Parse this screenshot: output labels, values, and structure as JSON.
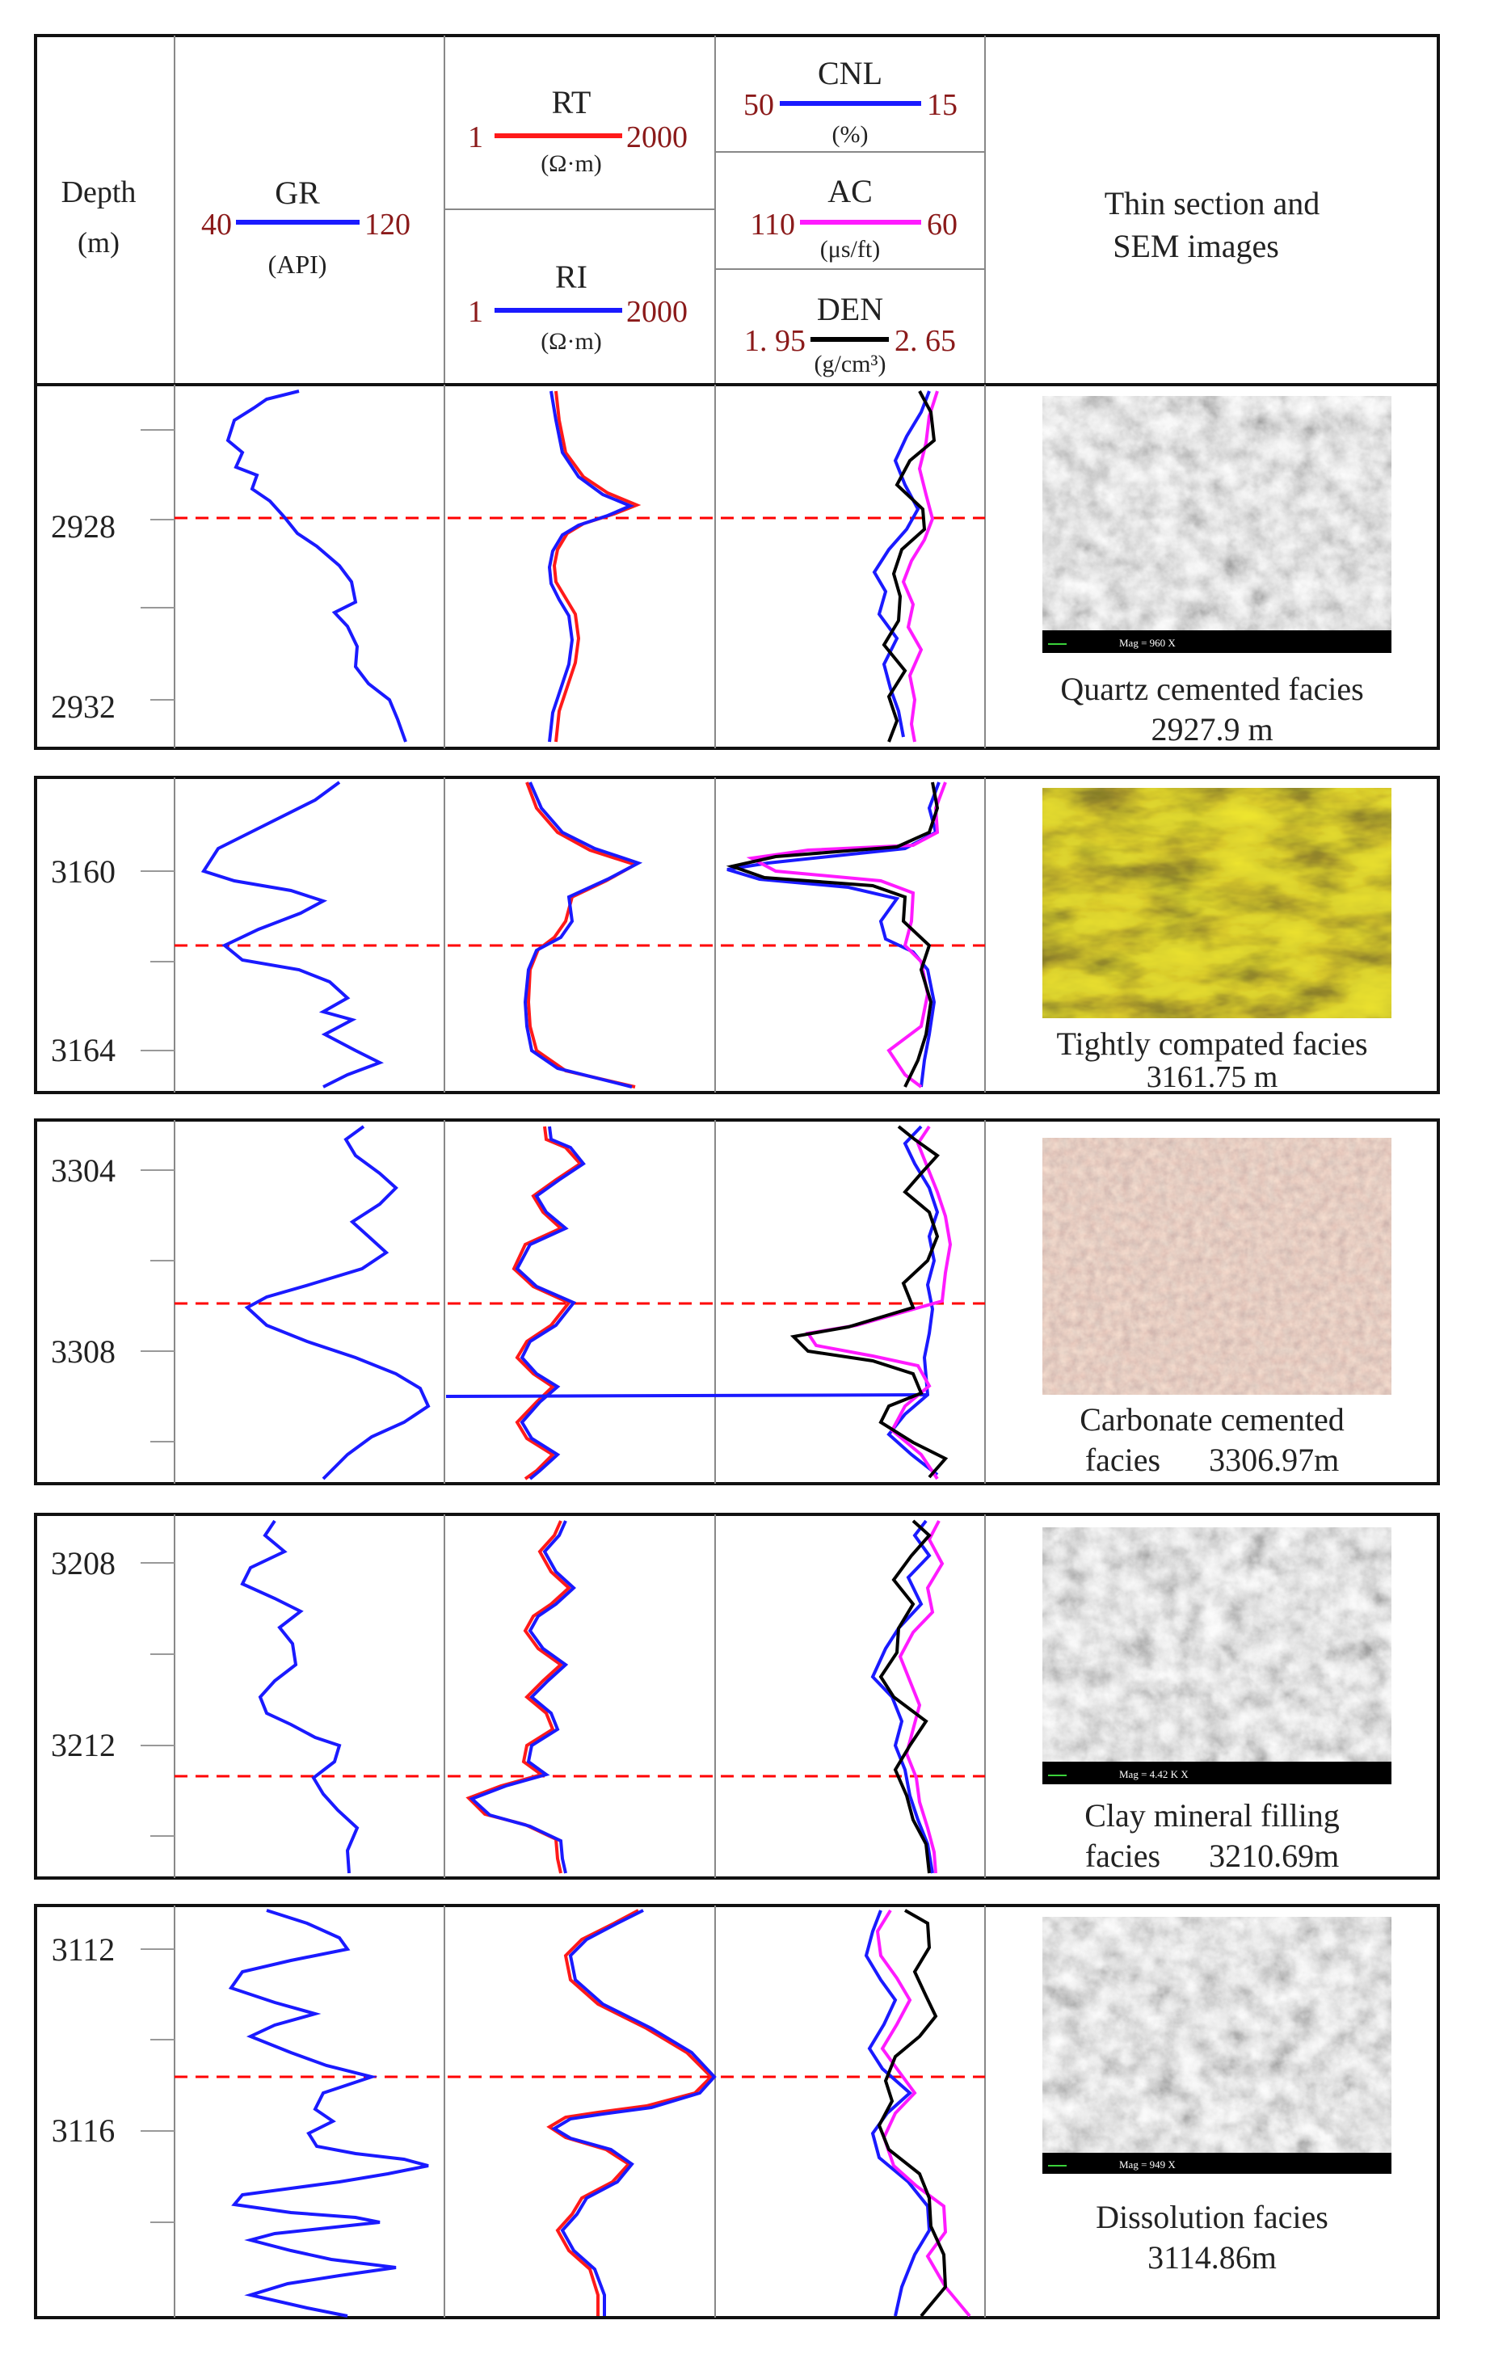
{
  "header": {
    "depth": {
      "label": "Depth",
      "unit": "(m)"
    },
    "gr": {
      "name": "GR",
      "min": "40",
      "max": "120",
      "unit": "(API)",
      "color": "#1a1aff"
    },
    "rt": {
      "name": "RT",
      "min": "1",
      "max": "2000",
      "unit": "(Ω·m)",
      "color": "#ff1a1a"
    },
    "ri": {
      "name": "RI",
      "min": "1",
      "max": "2000",
      "unit": "(Ω·m)",
      "color": "#1a1aff"
    },
    "cnl": {
      "name": "CNL",
      "min": "50",
      "max": "15",
      "unit": "(%)",
      "color": "#1a1aff"
    },
    "ac": {
      "name": "AC",
      "min": "110",
      "max": "60",
      "unit": "(μs/ft)",
      "color": "#ff1aff"
    },
    "den": {
      "name": "DEN",
      "min": "1. 95",
      "max": "2. 65",
      "unit": "(g/cm³)",
      "color": "#000000"
    },
    "images_title_1": "Thin section and",
    "images_title_2": "SEM images"
  },
  "colors": {
    "scale_value": "#8b1a1a",
    "marker_line": "#ff0000",
    "border": "#111111",
    "grid": "#888888"
  },
  "panels": [
    {
      "depth_labels": [
        "2928",
        "2932"
      ],
      "caption_1": "Quartz cemented facies",
      "caption_2": "2927.9 m",
      "image_type": "SEM micrograph",
      "mag": "Mag =  960 X"
    },
    {
      "depth_labels": [
        "3160",
        "3164"
      ],
      "caption_1": "Tightly compated facies",
      "caption_2": "3161.75 m",
      "image_type": "thin section (yellow)"
    },
    {
      "depth_labels": [
        "3304",
        "3308"
      ],
      "caption_1": "Carbonate cemented",
      "caption_2": "facies      3306.97m",
      "image_type": "thin section (pink)"
    },
    {
      "depth_labels": [
        "3208",
        "3212"
      ],
      "caption_1": "Clay mineral filling",
      "caption_2": "facies      3210.69m",
      "image_type": "SEM micrograph",
      "mag": "Mag =  4.42 K X"
    },
    {
      "depth_labels": [
        "3112",
        "3116"
      ],
      "caption_1": "Dissolution facies",
      "caption_2": "3114.86m",
      "image_type": "SEM micrograph",
      "mag": "Mag =  949 X"
    }
  ]
}
